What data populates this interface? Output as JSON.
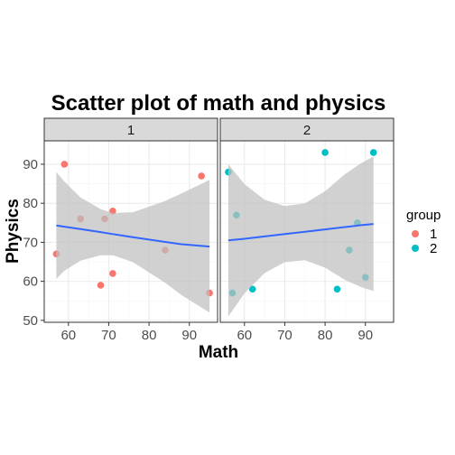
{
  "chart_data": {
    "type": "scatter",
    "title": "Scatter plot of math and physics",
    "xlabel": "Math",
    "ylabel": "Physics",
    "xlim": [
      54,
      97
    ],
    "ylim": [
      49.5,
      96
    ],
    "x_ticks": [
      60,
      70,
      80,
      90
    ],
    "y_ticks": [
      50,
      60,
      70,
      80,
      90
    ],
    "grid": true,
    "legend": {
      "title": "group",
      "position": "right",
      "entries": [
        {
          "label": "1",
          "color": "#F8766D"
        },
        {
          "label": "2",
          "color": "#00BFC4"
        }
      ]
    },
    "facets": [
      {
        "label": "1",
        "series": "1",
        "points": [
          {
            "x": 57,
            "y": 67
          },
          {
            "x": 59,
            "y": 90
          },
          {
            "x": 63,
            "y": 76
          },
          {
            "x": 68,
            "y": 59
          },
          {
            "x": 69,
            "y": 76
          },
          {
            "x": 71,
            "y": 62
          },
          {
            "x": 71,
            "y": 78
          },
          {
            "x": 84,
            "y": 68
          },
          {
            "x": 93,
            "y": 87
          },
          {
            "x": 95,
            "y": 57
          }
        ],
        "trend": {
          "x": [
            57,
            59,
            63,
            68,
            71,
            76,
            84,
            88,
            95
          ],
          "y": [
            74.3,
            74.0,
            73.4,
            72.6,
            72.1,
            71.3,
            70.1,
            69.5,
            68.9
          ],
          "lower": [
            60.6,
            62.7,
            65.3,
            66.7,
            66.7,
            64.9,
            59.6,
            56.5,
            52.0
          ],
          "upper": [
            88.0,
            85.6,
            81.5,
            78.5,
            77.5,
            77.7,
            80.6,
            82.5,
            86.0
          ]
        }
      },
      {
        "label": "2",
        "series": "2",
        "points": [
          {
            "x": 56,
            "y": 88
          },
          {
            "x": 57,
            "y": 57
          },
          {
            "x": 58,
            "y": 77
          },
          {
            "x": 62,
            "y": 58
          },
          {
            "x": 80,
            "y": 93
          },
          {
            "x": 83,
            "y": 58
          },
          {
            "x": 86,
            "y": 68
          },
          {
            "x": 88,
            "y": 75
          },
          {
            "x": 90,
            "y": 61
          },
          {
            "x": 92,
            "y": 93
          }
        ],
        "trend": {
          "x": [
            56,
            60,
            65,
            70,
            75,
            80,
            85,
            89,
            92
          ],
          "y": [
            70.5,
            70.9,
            71.5,
            72.1,
            72.7,
            73.3,
            73.9,
            74.4,
            74.7
          ],
          "lower": [
            51.0,
            56.9,
            62.1,
            64.9,
            65.4,
            63.5,
            60.3,
            58.5,
            57.5
          ],
          "upper": [
            90.0,
            84.9,
            80.9,
            79.3,
            80.0,
            83.1,
            87.5,
            90.3,
            92.0
          ]
        }
      }
    ]
  }
}
